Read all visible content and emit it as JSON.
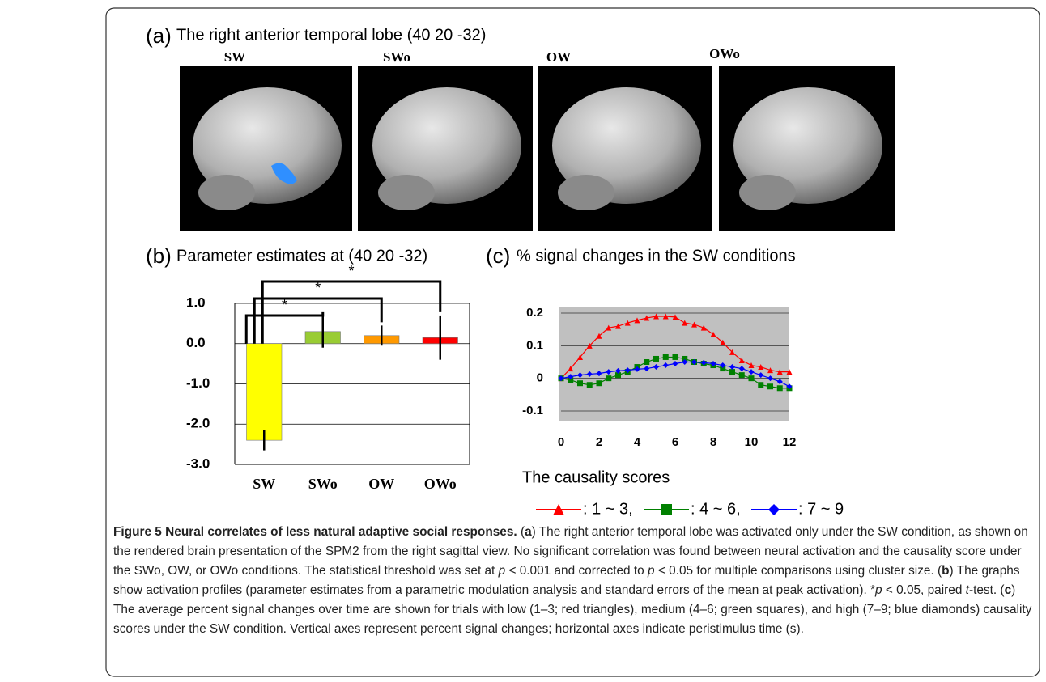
{
  "panel_a": {
    "panel_label": "(a)",
    "title": "The right anterior temporal lobe (40 20 -32)",
    "labels": [
      "SW",
      "SWo",
      "OW",
      "OWo"
    ]
  },
  "chart_data": [
    {
      "type": "bar",
      "panel_label": "(b)",
      "title": "Parameter estimates at (40 20 -32)",
      "categories": [
        "SW",
        "SWo",
        "OW",
        "OWo"
      ],
      "values": [
        -2.4,
        0.3,
        0.2,
        0.15
      ],
      "errors": [
        0.25,
        0.4,
        0.25,
        0.55
      ],
      "colors": [
        "#ffff00",
        "#99cc33",
        "#ff9900",
        "#ff0000"
      ],
      "ylim": [
        -3,
        1
      ],
      "yticks": [
        {
          "value": 1,
          "label": "1.0"
        },
        {
          "value": 0,
          "label": "0.0"
        },
        {
          "value": -1,
          "label": "-1.0"
        },
        {
          "value": -2,
          "label": "-2.0"
        },
        {
          "value": -3,
          "label": "-3.0"
        }
      ],
      "grid": true,
      "significance": [
        {
          "from": 0,
          "to": 1,
          "label": "*"
        },
        {
          "from": 0,
          "to": 2,
          "label": "*"
        },
        {
          "from": 0,
          "to": 3,
          "label": "*"
        }
      ]
    },
    {
      "type": "line",
      "panel_label": "(c)",
      "title": "% signal changes in the SW conditions",
      "legend_title": "The causality scores",
      "x": [
        0,
        0.5,
        1,
        1.5,
        2,
        2.5,
        3,
        3.5,
        4,
        4.5,
        5,
        5.5,
        6,
        6.5,
        7,
        7.5,
        8,
        8.5,
        9,
        9.5,
        10,
        10.5,
        11,
        11.5,
        12
      ],
      "series": [
        {
          "name": ": 1 ~ 3,",
          "color": "#ff0000",
          "marker": "triangle",
          "values": [
            0,
            0.03,
            0.065,
            0.1,
            0.13,
            0.155,
            0.16,
            0.17,
            0.178,
            0.185,
            0.19,
            0.19,
            0.188,
            0.17,
            0.165,
            0.155,
            0.135,
            0.11,
            0.08,
            0.055,
            0.04,
            0.035,
            0.025,
            0.02,
            0.02
          ]
        },
        {
          "name": ": 4 ~ 6,",
          "color": "#008000",
          "marker": "square",
          "values": [
            0,
            -0.005,
            -0.015,
            -0.02,
            -0.015,
            0,
            0.01,
            0.02,
            0.035,
            0.05,
            0.06,
            0.065,
            0.065,
            0.06,
            0.05,
            0.045,
            0.04,
            0.03,
            0.02,
            0.01,
            0,
            -0.02,
            -0.025,
            -0.03,
            -0.03
          ]
        },
        {
          "name": ": 7 ~ 9",
          "color": "#0000ff",
          "marker": "diamond",
          "values": [
            0,
            0.005,
            0.01,
            0.013,
            0.015,
            0.02,
            0.023,
            0.025,
            0.028,
            0.03,
            0.035,
            0.04,
            0.045,
            0.05,
            0.05,
            0.048,
            0.045,
            0.04,
            0.035,
            0.03,
            0.02,
            0.01,
            0,
            -0.01,
            -0.025
          ]
        }
      ],
      "xlim": [
        0,
        12
      ],
      "ylim": [
        -0.1,
        0.2
      ],
      "xticks": [
        0,
        2,
        4,
        6,
        8,
        10,
        12
      ],
      "yticks": [
        0.2,
        0.1,
        0,
        -0.1
      ],
      "grid": true,
      "background": "#c0c0c0"
    }
  ],
  "caption": {
    "runs": [
      {
        "text": "Figure 5 Neural correlates of less natural adaptive social responses.",
        "style": "b"
      },
      {
        "text": " ("
      },
      {
        "text": "a",
        "style": "b"
      },
      {
        "text": ") The right anterior temporal lobe was activated only under the SW condition, as shown on the rendered brain presentation of the SPM2 from the right sagittal view. No significant correlation was found between neural activation and the causality score under the SWo, OW, or OWo conditions. The statistical threshold was set at "
      },
      {
        "text": "p",
        "style": "i"
      },
      {
        "text": " < 0.001 and corrected to "
      },
      {
        "text": "p",
        "style": "i"
      },
      {
        "text": " < 0.05 for multiple comparisons using cluster size. ("
      },
      {
        "text": "b",
        "style": "b"
      },
      {
        "text": ") The graphs show activation profiles (parameter estimates from a parametric modulation analysis and standard errors of the mean at peak activation). *"
      },
      {
        "text": "p",
        "style": "i"
      },
      {
        "text": " < 0.05, paired "
      },
      {
        "text": "t",
        "style": "i"
      },
      {
        "text": "-test. ("
      },
      {
        "text": "c",
        "style": "b"
      },
      {
        "text": ") The average percent signal changes over time are shown for trials with low (1–3; red triangles), medium (4–6; green squares), and high (7–9; blue diamonds) causality scores under the SW condition. Vertical axes represent percent signal changes; horizontal axes indicate peristimulus time (s)."
      }
    ]
  }
}
